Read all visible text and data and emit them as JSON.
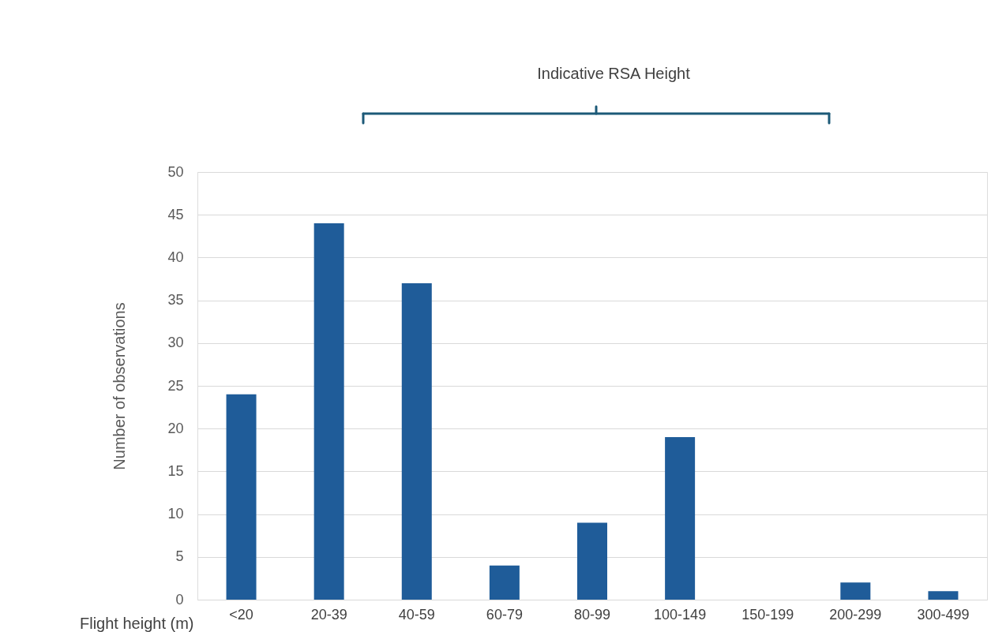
{
  "chart_data": {
    "type": "bar",
    "xlabel": "Flight height (m)",
    "ylabel": "Number of observations",
    "categories": [
      "<20",
      "20-39",
      "40-59",
      "60-79",
      "80-99",
      "100-149",
      "150-199",
      "200-299",
      "300-499"
    ],
    "values": [
      24,
      44,
      37,
      4,
      9,
      19,
      0,
      2,
      1
    ],
    "color": "#1f5c99",
    "ylim": [
      0,
      50
    ],
    "yticks": [
      0,
      5,
      10,
      15,
      20,
      25,
      30,
      35,
      40,
      45,
      50
    ],
    "grid": "y",
    "annotations": [
      "Indicative RSA Height"
    ]
  }
}
